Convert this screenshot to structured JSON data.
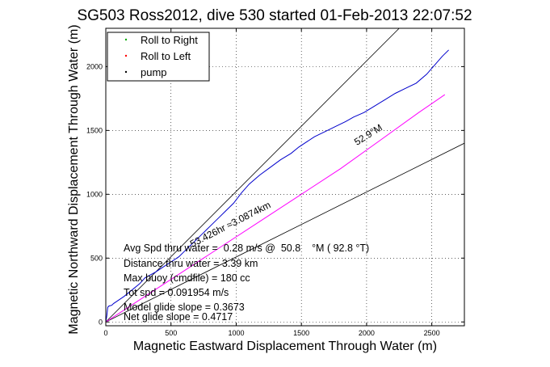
{
  "chart_data": {
    "type": "line",
    "title": "SG503 Ross2012, dive 530 started 01-Feb-2013 22:07:52",
    "xlabel": "Magnetic Eastward Displacement Through Water (m)",
    "ylabel": "Magnetic Northward Displacement Through Water (m)",
    "xlim": [
      0,
      2750
    ],
    "ylim": [
      -30,
      2300
    ],
    "xticks": [
      0,
      500,
      1000,
      1500,
      2000,
      2500
    ],
    "yticks": [
      0,
      500,
      1000,
      1500,
      2000
    ],
    "grid": true,
    "legend": {
      "placement": "top-left",
      "entries": [
        {
          "label": "Roll to Right",
          "color": "#00aa00"
        },
        {
          "label": "Roll to Left",
          "color": "#ff0000"
        },
        {
          "label": "pump",
          "color": "#000000"
        }
      ]
    },
    "series": [
      {
        "color": "#0000cc",
        "x": [
          0,
          8,
          15,
          25,
          45,
          60,
          90,
          140,
          200,
          260,
          300,
          380,
          440,
          500,
          560,
          620,
          680,
          740,
          800,
          860,
          920,
          980,
          1040,
          1100,
          1180,
          1260,
          1340,
          1420,
          1480,
          1540,
          1600,
          1680,
          1760,
          1840,
          1900,
          1980,
          2060,
          2140,
          2220,
          2300,
          2380,
          2460,
          2520,
          2580,
          2630
        ],
        "y": [
          0,
          50,
          115,
          125,
          130,
          145,
          165,
          200,
          250,
          300,
          345,
          390,
          430,
          470,
          510,
          570,
          630,
          690,
          750,
          810,
          870,
          930,
          1010,
          1080,
          1150,
          1210,
          1270,
          1320,
          1370,
          1410,
          1450,
          1490,
          1530,
          1570,
          1605,
          1640,
          1690,
          1740,
          1790,
          1830,
          1870,
          1940,
          2010,
          2080,
          2130
        ]
      },
      {
        "color": "#ff00ff",
        "x": [
          0,
          300,
          600,
          900,
          1200,
          1500,
          1800,
          2100,
          2400,
          2600
        ],
        "y": [
          0,
          200,
          400,
          600,
          800,
          1000,
          1200,
          1420,
          1640,
          1780
        ]
      }
    ],
    "reference_lines": [
      {
        "label": "53.426hr ≈3.0874km",
        "x": [
          0,
          2250
        ],
        "y": [
          0,
          2300
        ]
      },
      {
        "label": "52.9°M",
        "x": [
          0,
          2750
        ],
        "y": [
          0,
          1400
        ]
      }
    ],
    "annotations": [
      "Avg Spd thru water =  0.28 m/s @  50.8    °M ( 92.8 °T)",
      "Distance thru water =  3.39 km",
      "Max buoy (cmdfile) = 180 cc",
      "Tot spd = 0.091954 m/s",
      "Model glide slope = 0.3673",
      "Net glide slope = 0.4717"
    ]
  }
}
